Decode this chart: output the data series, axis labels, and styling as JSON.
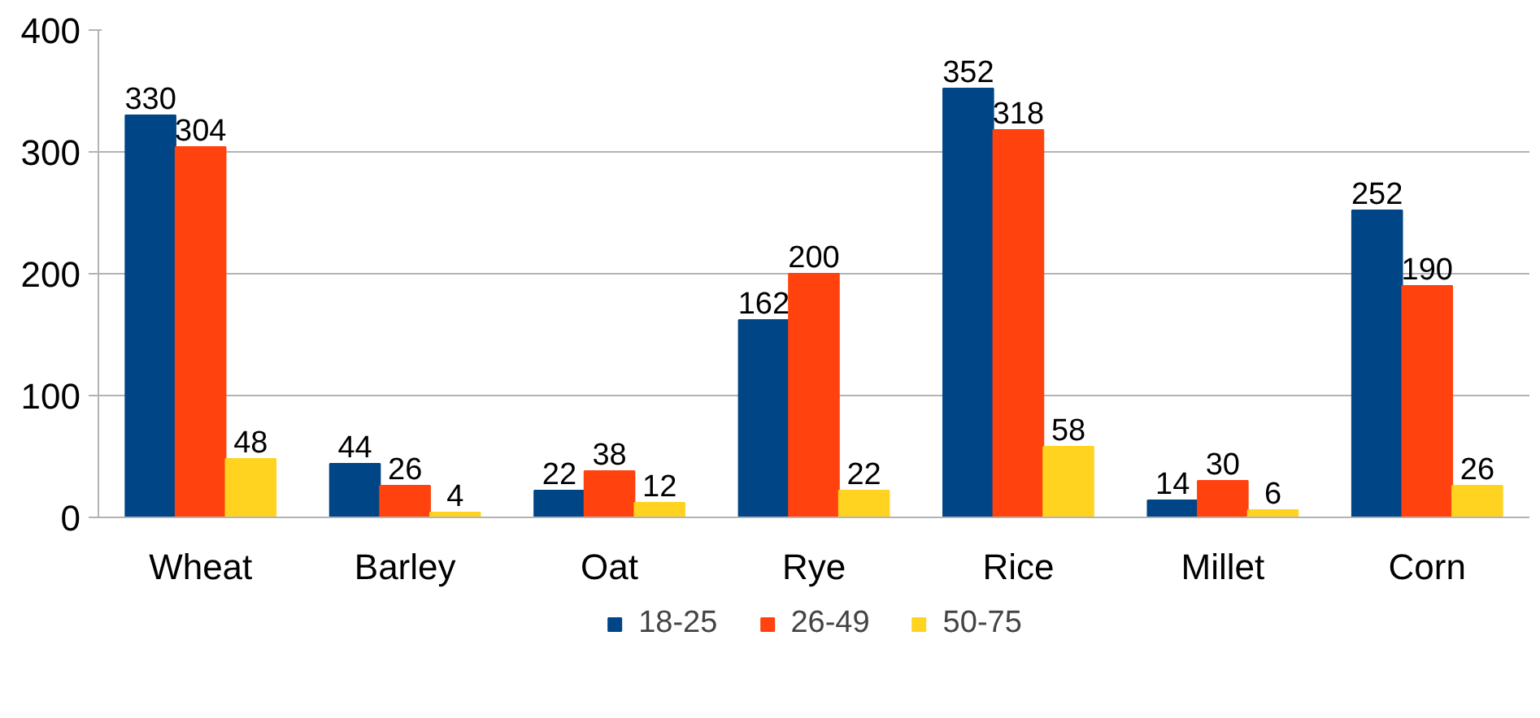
{
  "chart_data": {
    "type": "bar",
    "categories": [
      "Wheat",
      "Barley",
      "Oat",
      "Rye",
      "Rice",
      "Millet",
      "Corn"
    ],
    "series": [
      {
        "name": "18-25",
        "color": "#004586",
        "values": [
          330,
          44,
          22,
          162,
          352,
          14,
          252
        ]
      },
      {
        "name": "26-49",
        "color": "#ff420e",
        "values": [
          304,
          26,
          38,
          200,
          318,
          30,
          190
        ]
      },
      {
        "name": "50-75",
        "color": "#ffd320",
        "values": [
          48,
          4,
          12,
          22,
          58,
          6,
          26
        ]
      }
    ],
    "ylim": [
      0,
      400
    ],
    "yticks": [
      0,
      100,
      200,
      300,
      400
    ],
    "grid": "y",
    "legend": "bottom",
    "data_labels": true
  }
}
